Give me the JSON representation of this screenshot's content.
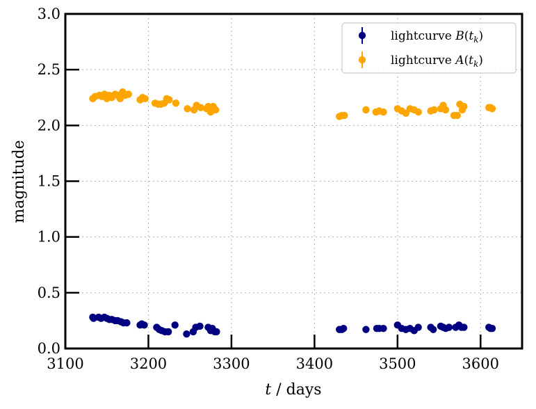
{
  "chart_data": {
    "type": "scatter",
    "title": "",
    "xlabel": "t / days",
    "ylabel": "magnitude",
    "xlim": [
      3100,
      3650
    ],
    "ylim": [
      0.0,
      3.0
    ],
    "xticks": [
      3100,
      3200,
      3300,
      3400,
      3500,
      3600
    ],
    "yticks": [
      0.0,
      0.5,
      1.0,
      1.5,
      2.0,
      2.5,
      3.0
    ],
    "xtick_labels": [
      "3100",
      "3200",
      "3300",
      "3400",
      "3500",
      "3600"
    ],
    "ytick_labels": [
      "0.0",
      "0.5",
      "1.0",
      "1.5",
      "2.0",
      "2.5",
      "3.0"
    ],
    "grid": true,
    "legend_position": "top-right",
    "series": [
      {
        "name": "lightcurve B(t_k)",
        "legend_label": "lightcurve B(t",
        "legend_sub": "k",
        "legend_var": "B",
        "color": "#000080",
        "x": [
          3133,
          3134,
          3140,
          3143,
          3147,
          3150,
          3153,
          3156,
          3160,
          3163,
          3167,
          3170,
          3174,
          3190,
          3192,
          3195,
          3210,
          3213,
          3216,
          3220,
          3224,
          3232,
          3246,
          3254,
          3257,
          3262,
          3272,
          3275,
          3277,
          3280,
          3282,
          3430,
          3433,
          3435,
          3462,
          3475,
          3478,
          3483,
          3500,
          3505,
          3510,
          3515,
          3520,
          3525,
          3540,
          3543,
          3552,
          3555,
          3558,
          3562,
          3570,
          3574,
          3577,
          3580,
          3610,
          3612,
          3614
        ],
        "y": [
          0.28,
          0.27,
          0.28,
          0.27,
          0.28,
          0.27,
          0.26,
          0.26,
          0.25,
          0.25,
          0.24,
          0.23,
          0.23,
          0.21,
          0.22,
          0.21,
          0.19,
          0.17,
          0.16,
          0.15,
          0.15,
          0.21,
          0.13,
          0.15,
          0.19,
          0.2,
          0.19,
          0.16,
          0.18,
          0.15,
          0.15,
          0.17,
          0.17,
          0.18,
          0.17,
          0.18,
          0.18,
          0.18,
          0.21,
          0.18,
          0.17,
          0.18,
          0.16,
          0.19,
          0.19,
          0.17,
          0.2,
          0.19,
          0.18,
          0.19,
          0.19,
          0.21,
          0.19,
          0.19,
          0.19,
          0.18,
          0.18
        ]
      },
      {
        "name": "lightcurve A(t_k)",
        "legend_label": "lightcurve A(t",
        "legend_sub": "k",
        "legend_var": "A",
        "color": "#ffa500",
        "x": [
          3133,
          3136,
          3141,
          3144,
          3147,
          3150,
          3153,
          3156,
          3160,
          3163,
          3166,
          3169,
          3172,
          3176,
          3190,
          3193,
          3196,
          3208,
          3212,
          3215,
          3219,
          3222,
          3225,
          3233,
          3247,
          3255,
          3258,
          3263,
          3270,
          3272,
          3275,
          3278,
          3281,
          3430,
          3433,
          3436,
          3462,
          3474,
          3478,
          3483,
          3500,
          3505,
          3510,
          3515,
          3520,
          3525,
          3540,
          3544,
          3552,
          3555,
          3558,
          3568,
          3572,
          3575,
          3578,
          3580,
          3610,
          3612,
          3614
        ],
        "y": [
          2.24,
          2.26,
          2.27,
          2.26,
          2.28,
          2.24,
          2.27,
          2.25,
          2.28,
          2.27,
          2.24,
          2.3,
          2.27,
          2.28,
          2.23,
          2.25,
          2.24,
          2.2,
          2.19,
          2.19,
          2.2,
          2.24,
          2.23,
          2.2,
          2.15,
          2.14,
          2.18,
          2.16,
          2.15,
          2.17,
          2.12,
          2.17,
          2.14,
          2.08,
          2.09,
          2.09,
          2.14,
          2.12,
          2.13,
          2.12,
          2.15,
          2.13,
          2.11,
          2.15,
          2.14,
          2.12,
          2.13,
          2.14,
          2.15,
          2.18,
          2.14,
          2.09,
          2.09,
          2.19,
          2.14,
          2.17,
          2.16,
          2.16,
          2.15
        ]
      }
    ]
  }
}
